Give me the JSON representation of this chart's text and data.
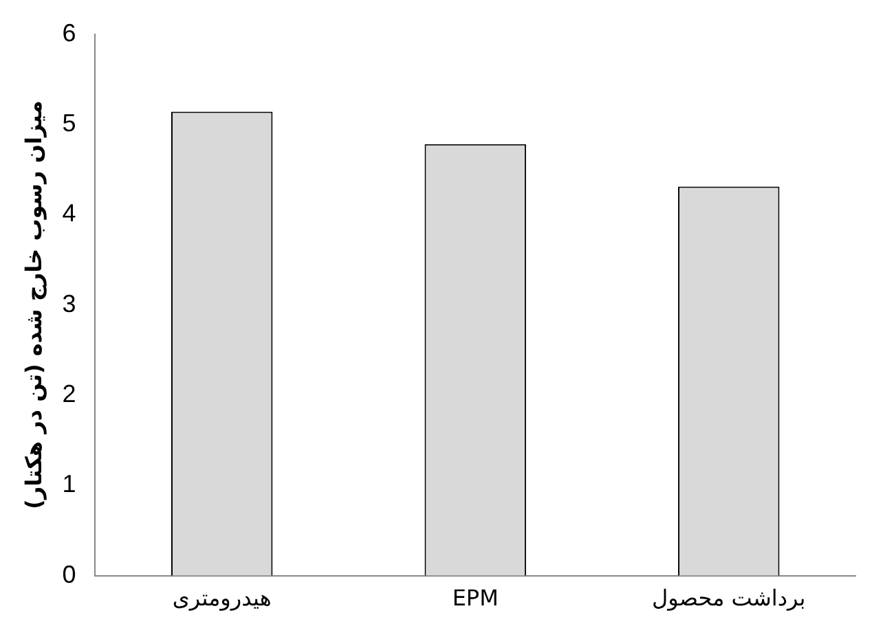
{
  "chart_data": {
    "type": "bar",
    "ylabel": "میزان رسوب خارج شده (تن در هکتار)",
    "categories": [
      "هیدرومتری",
      "EPM",
      "برداشت محصول"
    ],
    "values": [
      5.14,
      4.78,
      4.31
    ],
    "color": "#d9d9d9",
    "ylim": [
      0,
      6
    ],
    "yticks": [
      0,
      1,
      2,
      3,
      4,
      5,
      6
    ],
    "grid": false,
    "legend": false
  }
}
